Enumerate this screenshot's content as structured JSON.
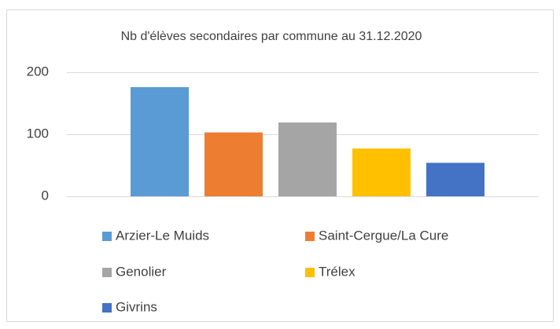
{
  "chart_data": {
    "type": "bar",
    "title": "Nb d'élèves secondaires par commune au 31.12.2020",
    "categories": [
      "Arzier-Le Muids",
      "Saint-Cergue/La Cure",
      "Genolier",
      "Trélex",
      "Givrins"
    ],
    "values": [
      176,
      103,
      119,
      77,
      54
    ],
    "colors": [
      "#5b9bd5",
      "#ed7d31",
      "#a5a5a5",
      "#ffc000",
      "#4472c4"
    ],
    "ylim": [
      0,
      200
    ],
    "yticks": [
      0,
      100,
      200
    ],
    "grid": true
  }
}
